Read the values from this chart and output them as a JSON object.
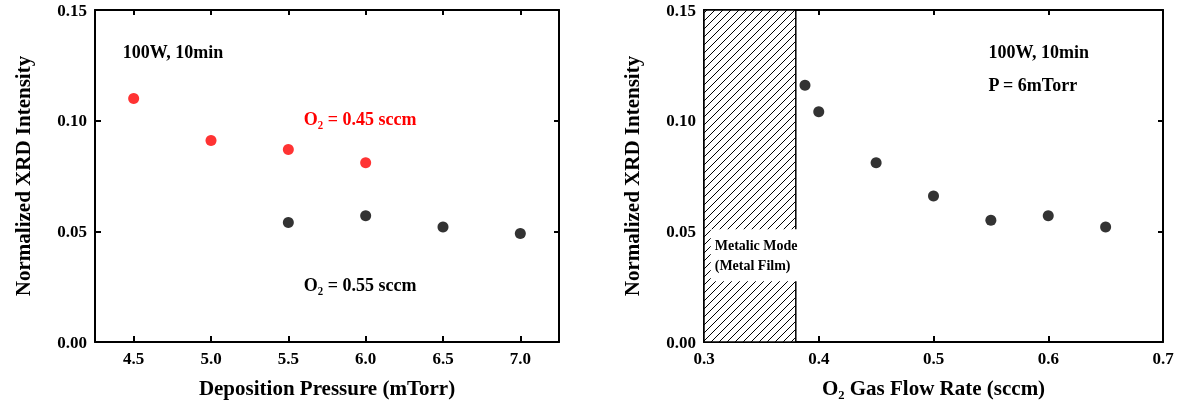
{
  "chart_data": [
    {
      "type": "scatter",
      "xlabel": "Deposition Pressure (mTorr)",
      "ylabel": "Normalized XRD Intensity",
      "annotations": [
        "100W, 10min"
      ],
      "series": [
        {
          "name": "O₂ = 0.45 sccm",
          "color": "#ff0000",
          "x": [
            4.5,
            5.0,
            5.5,
            6.0
          ],
          "values": [
            0.11,
            0.091,
            0.087,
            0.081
          ]
        },
        {
          "name": "O₂ = 0.55 sccm",
          "color": "#000000",
          "x": [
            5.5,
            6.0,
            6.5,
            7.0
          ],
          "values": [
            0.054,
            0.057,
            0.052,
            0.049
          ]
        }
      ],
      "xlim": [
        4.25,
        7.25
      ],
      "xticks": [
        4.5,
        {
          "value": 5,
          "label": "5.0"
        },
        5.5,
        {
          "value": 6,
          "label": "6.0"
        },
        6.5,
        {
          "value": 7,
          "label": "7.0"
        }
      ],
      "ylim": [
        0,
        0.15
      ],
      "yticks": [
        {
          "value": 0,
          "label": "0.00"
        },
        {
          "value": 0.05,
          "label": "0.05"
        },
        {
          "value": 0.1,
          "label": "0.10"
        },
        {
          "value": 0.15,
          "label": "0.15"
        }
      ],
      "marker": "circle",
      "grid": false,
      "legend": false
    },
    {
      "type": "scatter",
      "xlabel": "O₂ Gas Flow Rate (sccm)",
      "ylabel": "Normalized XRD Intensity",
      "annotations": [
        "100W, 10min",
        "P = 6mTorr"
      ],
      "series": [
        {
          "color": "#000000",
          "x": [
            0.388,
            0.4,
            0.45,
            0.5,
            0.55,
            0.6,
            0.65
          ],
          "values": [
            0.116,
            0.104,
            0.081,
            0.066,
            0.055,
            0.057,
            0.052
          ]
        }
      ],
      "bands": [
        {
          "axis": "x",
          "from": 0.3,
          "to": 0.38,
          "label": "Metalic Mode\n(Metal Film)"
        }
      ],
      "xlim": [
        0.3,
        0.7
      ],
      "xticks": [
        0.3,
        0.4,
        0.5,
        0.6,
        0.7
      ],
      "ylim": [
        0,
        0.15
      ],
      "yticks": [
        {
          "value": 0,
          "label": "0.00"
        },
        {
          "value": 0.05,
          "label": "0.05"
        },
        {
          "value": 0.1,
          "label": "0.10"
        },
        {
          "value": 0.15,
          "label": "0.15"
        }
      ],
      "marker": "circle",
      "grid": false,
      "legend": false
    }
  ]
}
